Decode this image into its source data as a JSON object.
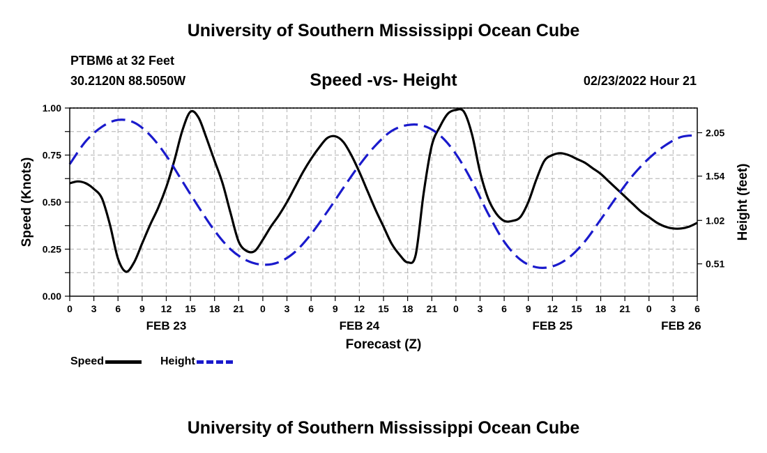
{
  "header": {
    "title": "University of Southern Mississippi Ocean Cube",
    "station": "PTBM6 at 32 Feet",
    "coords": "30.2120N  88.5050W",
    "subtitle": "Speed -vs- Height",
    "datetime": "02/23/2022 Hour 21"
  },
  "footer": {
    "title": "University of Southern Mississippi Ocean Cube"
  },
  "legend": {
    "speed": "Speed",
    "height": "Height"
  },
  "colors": {
    "speed": "#000000",
    "height": "#1a1acc",
    "grid": "#bdbdbd"
  },
  "chart_data": {
    "type": "line",
    "title": "Speed -vs- Height",
    "xlabel": "Forecast (Z)",
    "ylabel": "Speed (Knots)",
    "ylabel_right": "Height (feet)",
    "x_range": [
      0,
      78
    ],
    "ylim": [
      0,
      1
    ],
    "ylim_right": [
      0.13,
      2.34
    ],
    "x_tick_labels": [
      "0",
      "3",
      "6",
      "9",
      "12",
      "15",
      "18",
      "21",
      "0",
      "3",
      "6",
      "9",
      "12",
      "15",
      "18",
      "21",
      "0",
      "3",
      "6",
      "9",
      "12",
      "15",
      "18",
      "21",
      "0",
      "3",
      "6"
    ],
    "day_labels": [
      {
        "x": 12,
        "label": "FEB 23"
      },
      {
        "x": 36,
        "label": "FEB 24"
      },
      {
        "x": 60,
        "label": "FEB 25"
      },
      {
        "x": 76,
        "label": "FEB 26"
      }
    ],
    "y_ticks_left": [
      "0.00",
      "0.25",
      "0.50",
      "0.75",
      "1.00"
    ],
    "y_ticks_right": [
      {
        "value": 0.51,
        "label": "0.51"
      },
      {
        "value": 1.02,
        "label": "1.02"
      },
      {
        "value": 1.54,
        "label": "1.54"
      },
      {
        "value": 2.05,
        "label": "2.05"
      }
    ],
    "grid": true,
    "series": [
      {
        "name": "Speed",
        "axis": "left",
        "style": "solid",
        "x": [
          0,
          1,
          2,
          3,
          4,
          5,
          6,
          7,
          8,
          9,
          10,
          11,
          12,
          13,
          14,
          15,
          16,
          17,
          18,
          19,
          20,
          21,
          22,
          23,
          24,
          25,
          26,
          27,
          28,
          29,
          30,
          31,
          32,
          33,
          34,
          35,
          36,
          37,
          38,
          39,
          40,
          41,
          42,
          43,
          44,
          45,
          46,
          47,
          48,
          49,
          50,
          51,
          52,
          53,
          54,
          55,
          56,
          57,
          58,
          59,
          60,
          61,
          62,
          63,
          64,
          65,
          66,
          67,
          68,
          69,
          70,
          71,
          72,
          73,
          74,
          75,
          76,
          77,
          78
        ],
        "values": [
          0.6,
          0.61,
          0.6,
          0.57,
          0.52,
          0.38,
          0.2,
          0.13,
          0.18,
          0.28,
          0.38,
          0.47,
          0.58,
          0.72,
          0.88,
          0.98,
          0.95,
          0.84,
          0.72,
          0.6,
          0.44,
          0.29,
          0.24,
          0.24,
          0.3,
          0.37,
          0.43,
          0.5,
          0.58,
          0.66,
          0.73,
          0.79,
          0.84,
          0.85,
          0.82,
          0.75,
          0.66,
          0.56,
          0.46,
          0.37,
          0.28,
          0.22,
          0.18,
          0.22,
          0.55,
          0.8,
          0.9,
          0.97,
          0.99,
          0.98,
          0.86,
          0.66,
          0.52,
          0.44,
          0.4,
          0.4,
          0.42,
          0.5,
          0.62,
          0.72,
          0.75,
          0.76,
          0.75,
          0.73,
          0.71,
          0.68,
          0.65,
          0.61,
          0.57,
          0.53,
          0.49,
          0.45,
          0.42,
          0.39,
          0.37,
          0.36,
          0.36,
          0.37,
          0.39
        ]
      },
      {
        "name": "Height",
        "axis": "right",
        "style": "dashed",
        "x": [
          0,
          2,
          4,
          6,
          8,
          10,
          12,
          14,
          16,
          18,
          20,
          22,
          24,
          26,
          28,
          30,
          32,
          34,
          36,
          38,
          40,
          42,
          44,
          46,
          48,
          50,
          52,
          54,
          56,
          58,
          60,
          62,
          64,
          66,
          68,
          70,
          72,
          74,
          76,
          78
        ],
        "values": [
          1.68,
          1.95,
          2.12,
          2.2,
          2.17,
          2.02,
          1.78,
          1.48,
          1.18,
          0.9,
          0.68,
          0.55,
          0.5,
          0.53,
          0.65,
          0.86,
          1.12,
          1.4,
          1.67,
          1.9,
          2.07,
          2.14,
          2.13,
          2.02,
          1.8,
          1.48,
          1.1,
          0.77,
          0.56,
          0.47,
          0.48,
          0.58,
          0.77,
          1.03,
          1.3,
          1.55,
          1.75,
          1.9,
          2.0,
          2.02
        ]
      }
    ]
  }
}
